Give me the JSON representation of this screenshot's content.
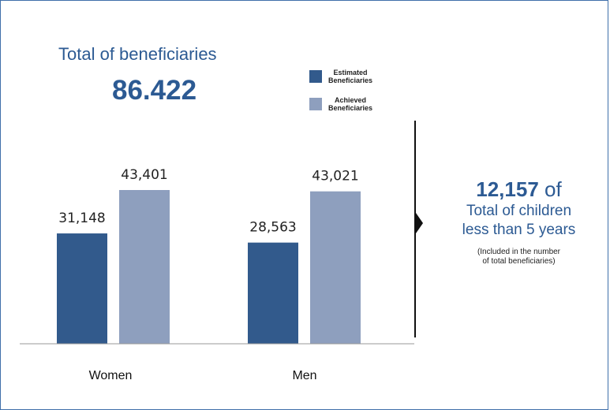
{
  "title": "Total of beneficiaries",
  "total": "86.422",
  "legend": [
    {
      "label": "Estimated\nBeneficiaries",
      "color": "#325a8c"
    },
    {
      "label": "Achieved\nBeneficiaries",
      "color": "#8e9fbe"
    }
  ],
  "children": {
    "number": "12,157",
    "of": "of",
    "line1": "Total of children",
    "line2": "less than 5 years",
    "note_line1": "(Included in the number",
    "note_line2": "of total beneficiaries)"
  },
  "chart_data": {
    "type": "bar",
    "categories": [
      "Women",
      "Men"
    ],
    "series": [
      {
        "name": "Estimated Beneficiaries",
        "values": [
          31148,
          28563
        ],
        "labels": [
          "31,148",
          "28,563"
        ],
        "color": "#325a8c"
      },
      {
        "name": "Achieved Beneficiaries",
        "values": [
          43401,
          43021
        ],
        "labels": [
          "43,401",
          "43,021"
        ],
        "color": "#8e9fbe"
      }
    ],
    "ylim": [
      0,
      50000
    ],
    "grid": false,
    "legend_position": "top-right"
  }
}
